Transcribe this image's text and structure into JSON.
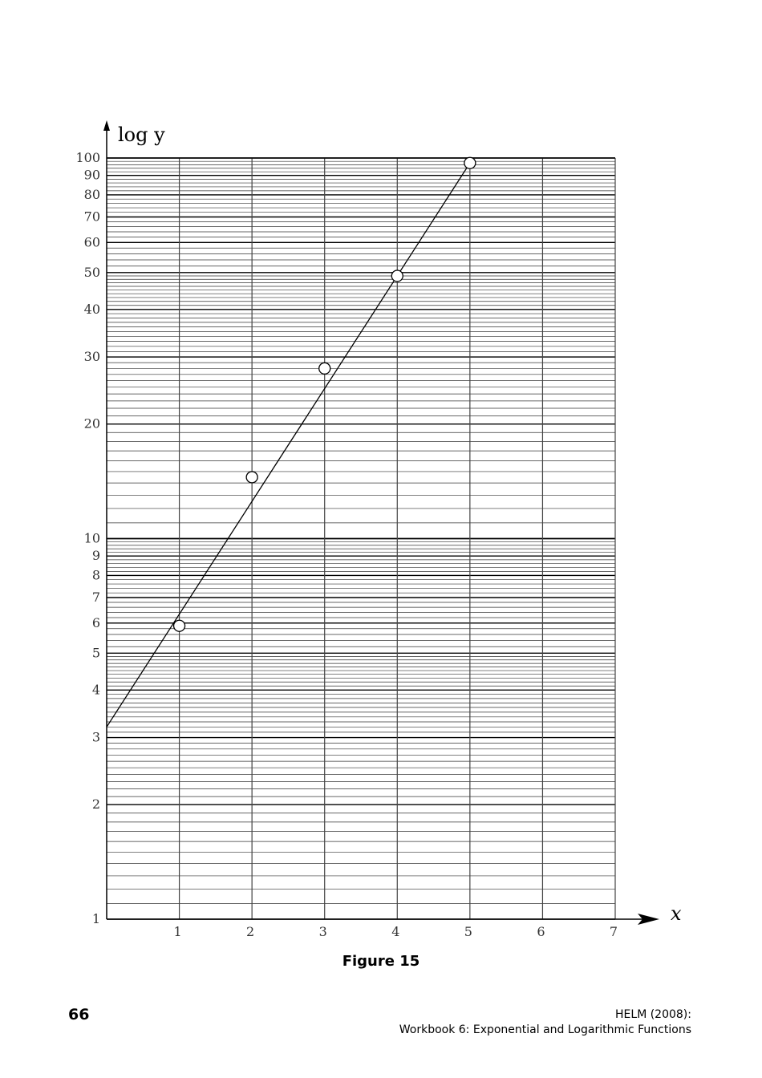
{
  "chart_data": {
    "type": "scatter",
    "xlabel": "x",
    "ylabel": "log y",
    "xlim": [
      0,
      7
    ],
    "ylim": [
      1,
      100
    ],
    "yscale": "log",
    "grid": true,
    "x_ticks": [
      1,
      2,
      3,
      4,
      5,
      6,
      7
    ],
    "y_ticks": [
      1,
      2,
      3,
      4,
      5,
      6,
      7,
      8,
      9,
      10,
      20,
      30,
      40,
      50,
      60,
      70,
      80,
      90,
      100
    ],
    "points": [
      {
        "x": 1,
        "y": 5.9
      },
      {
        "x": 2,
        "y": 14.5
      },
      {
        "x": 3,
        "y": 28
      },
      {
        "x": 4,
        "y": 49
      },
      {
        "x": 5,
        "y": 97
      }
    ],
    "fit_line": {
      "x": [
        0,
        5
      ],
      "y": [
        3.2,
        97
      ]
    }
  },
  "caption": "Figure 15",
  "footer": {
    "page_number": "66",
    "source": "HELM (2008):",
    "workbook": "Workbook 6: Exponential and Logarithmic Functions"
  }
}
